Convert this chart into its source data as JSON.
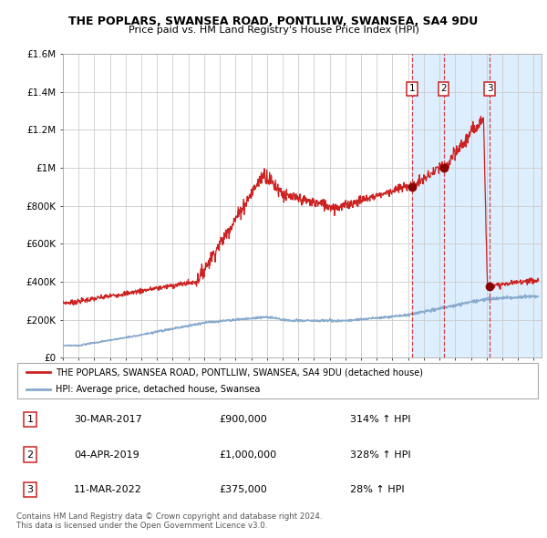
{
  "title": "THE POPLARS, SWANSEA ROAD, PONTLLIW, SWANSEA, SA4 9DU",
  "subtitle": "Price paid vs. HM Land Registry's House Price Index (HPI)",
  "ylim": [
    0,
    1600000
  ],
  "xlim_start": 1995.0,
  "xlim_end": 2025.5,
  "red_line_color": "#cc2222",
  "blue_line_color": "#88aacc",
  "grid_color": "#cccccc",
  "highlight_bg": "#ddeeff",
  "sale_dates": [
    2017.245,
    2019.257,
    2022.197
  ],
  "sale_prices": [
    900000,
    1000000,
    375000
  ],
  "sale_labels": [
    "1",
    "2",
    "3"
  ],
  "legend_red": "THE POPLARS, SWANSEA ROAD, PONTLLIW, SWANSEA, SA4 9DU (detached house)",
  "legend_blue": "HPI: Average price, detached house, Swansea",
  "table_rows": [
    {
      "num": "1",
      "date": "30-MAR-2017",
      "price": "£900,000",
      "hpi": "314% ↑ HPI"
    },
    {
      "num": "2",
      "date": "04-APR-2019",
      "price": "£1,000,000",
      "hpi": "328% ↑ HPI"
    },
    {
      "num": "3",
      "date": "11-MAR-2022",
      "price": "£375,000",
      "hpi": "28% ↑ HPI"
    }
  ],
  "footer": "Contains HM Land Registry data © Crown copyright and database right 2024.\nThis data is licensed under the Open Government Licence v3.0.",
  "ytick_labels": [
    "£0",
    "£200K",
    "£400K",
    "£600K",
    "£800K",
    "£1M",
    "£1.2M",
    "£1.4M",
    "£1.6M"
  ],
  "ytick_values": [
    0,
    200000,
    400000,
    600000,
    800000,
    1000000,
    1200000,
    1400000,
    1600000
  ]
}
